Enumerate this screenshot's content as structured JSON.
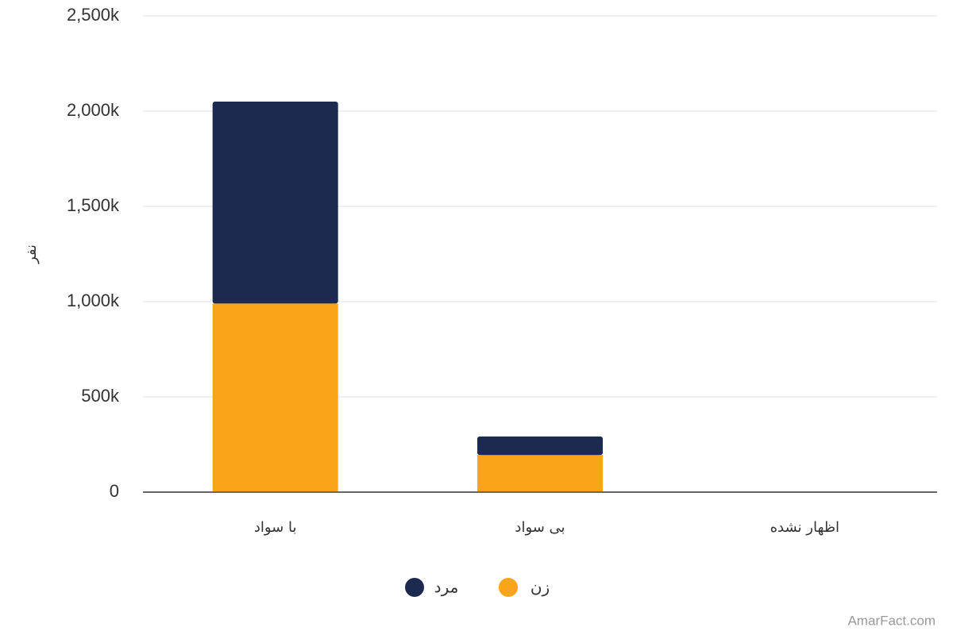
{
  "chart_data": {
    "type": "stacked_bar",
    "y_label": "نفر",
    "categories": [
      "با سواد",
      "بی سواد",
      "اظهار نشده"
    ],
    "series": [
      {
        "name": "زن",
        "color": "#f9a51a",
        "values": [
          990000,
          195000,
          0
        ]
      },
      {
        "name": "مرد",
        "color": "#1b2a4e",
        "values": [
          1060000,
          97000,
          0
        ]
      }
    ],
    "ylim": [
      0,
      2500000
    ],
    "yticks": [
      0,
      {
        "value": 500000,
        "label": "500k"
      },
      {
        "value": 1000000,
        "label": "1,000k"
      },
      {
        "value": 1500000,
        "label": "1,500k"
      },
      {
        "value": 2000000,
        "label": "2,000k"
      },
      {
        "value": 2500000,
        "label": "2,500k"
      }
    ],
    "grid": true,
    "watermark": "AmarFact.com"
  }
}
